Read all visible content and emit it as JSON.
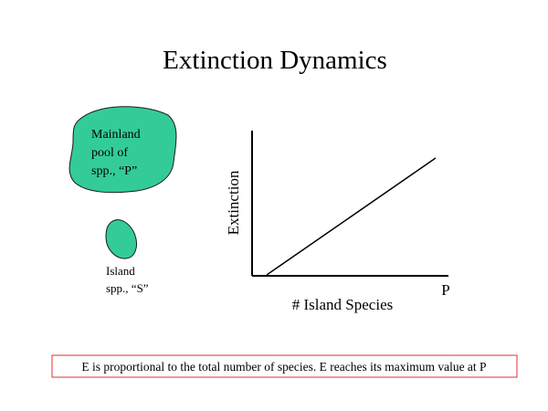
{
  "title": "Extinction Dynamics",
  "mainland": {
    "lines": [
      "Mainland",
      "pool of",
      "spp., “P”"
    ]
  },
  "island": {
    "lines": [
      "Island",
      "spp., “S”"
    ]
  },
  "graph": {
    "y_label": "Extinction",
    "x_label": "# Island Species",
    "x_end_label": "P"
  },
  "caption": "E is proportional to the total number of species. E reaches its maximum value at P"
}
